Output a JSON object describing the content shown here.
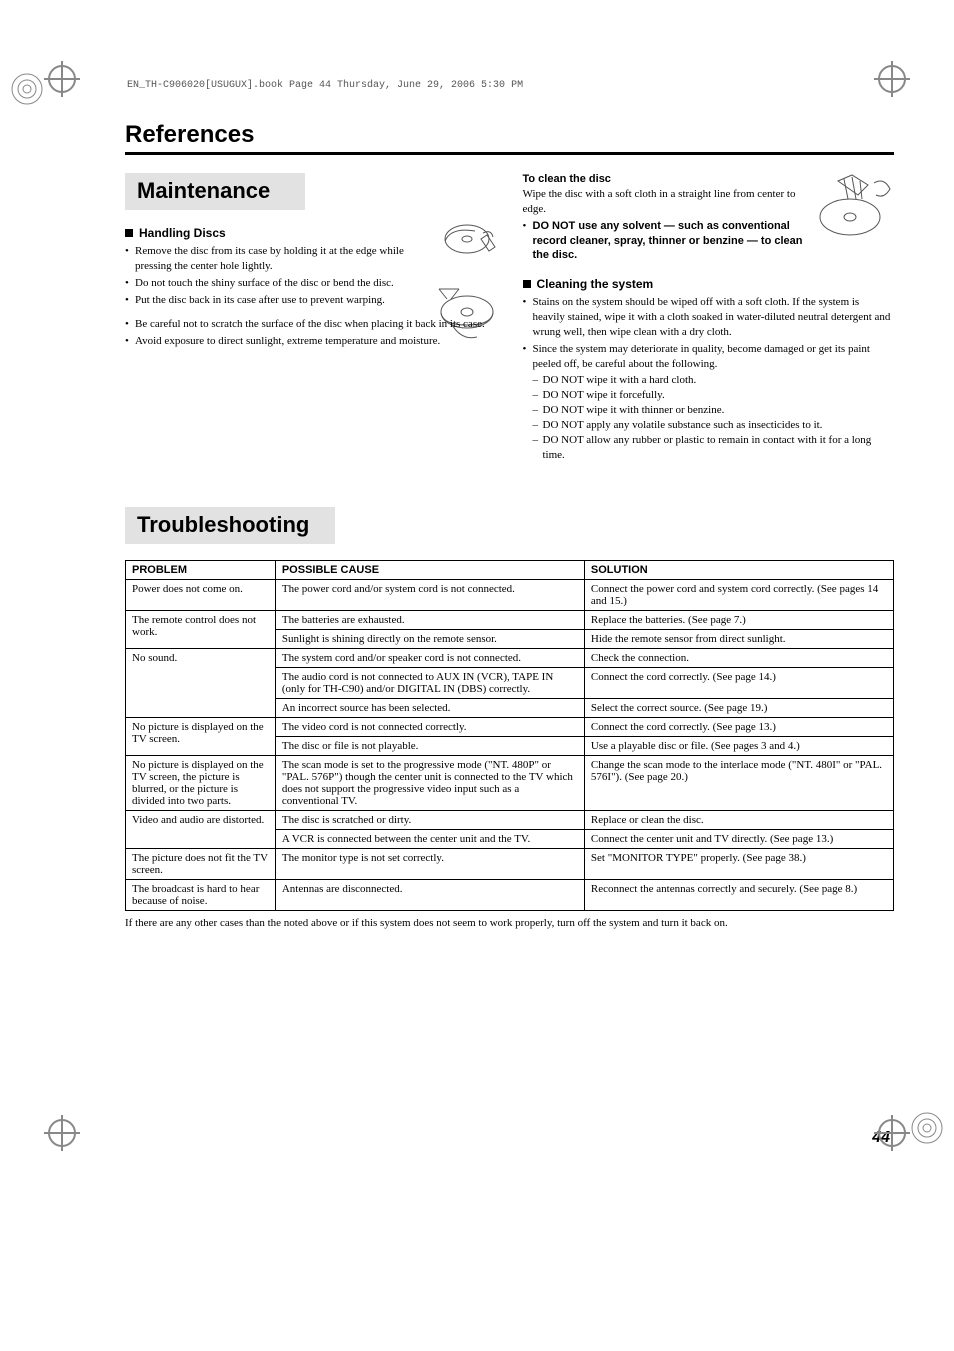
{
  "meta": {
    "header_line": "EN_TH-C906020[USUGUX].book  Page 44  Thursday, June 29, 2006  5:30 PM",
    "page_number": "44"
  },
  "chapter": {
    "title": "References"
  },
  "maintenance": {
    "title": "Maintenance",
    "handling_heading": "Handling Discs",
    "handling_items": [
      "Remove the disc from its case by holding it at the edge while pressing the center hole lightly.",
      "Do not touch the shiny surface of the disc or bend the disc.",
      "Put the disc back in its case after use to prevent warping.",
      "Be careful not to scratch the surface of the disc when placing it back in its case.",
      "Avoid exposure to direct sunlight, extreme temperature and moisture."
    ],
    "to_clean_heading": "To clean the disc",
    "to_clean_body": "Wipe the disc with a soft cloth in a straight line from center to edge.",
    "do_not_solvent": "DO NOT use any solvent — such as conventional record cleaner, spray, thinner or benzine — to clean the disc.",
    "cleaning_system_heading": "Cleaning the system",
    "cleaning_system_items": [
      "Stains on the system should be wiped off with a soft cloth. If the system is heavily stained, wipe it with a cloth soaked in water-diluted neutral detergent and wrung well, then wipe clean with a dry cloth.",
      "Since the system may deteriorate in quality, become damaged or get its paint peeled off, be careful about the following."
    ],
    "cleaning_system_sub": [
      "DO NOT wipe it with a hard cloth.",
      "DO NOT wipe it forcefully.",
      "DO NOT wipe it with thinner or benzine.",
      "DO NOT apply any volatile substance such as insecticides to it.",
      "DO NOT allow any rubber or plastic to remain in contact with it for a long time."
    ]
  },
  "troubleshooting": {
    "title": "Troubleshooting",
    "columns": [
      "PROBLEM",
      "POSSIBLE CAUSE",
      "SOLUTION"
    ],
    "rows": [
      {
        "problem": "Power does not come on.",
        "problem_rowspan": 1,
        "cause": "The power cord and/or system cord is not connected.",
        "solution": "Connect the power cord and system cord correctly. (See pages 14 and 15.)"
      },
      {
        "problem": "The remote control does not work.",
        "problem_rowspan": 2,
        "cause": "The batteries are exhausted.",
        "solution": "Replace the batteries. (See page 7.)"
      },
      {
        "cause": "Sunlight is shining directly on the remote sensor.",
        "solution": "Hide the remote sensor from direct sunlight."
      },
      {
        "problem": "No sound.",
        "problem_rowspan": 3,
        "cause": "The system cord and/or speaker cord is not connected.",
        "solution": "Check the connection."
      },
      {
        "cause": "The audio cord is not connected to AUX IN (VCR), TAPE IN (only for TH-C90) and/or DIGITAL IN (DBS) correctly.",
        "solution": "Connect the cord correctly. (See page 14.)"
      },
      {
        "cause": "An incorrect source has been selected.",
        "solution": "Select the correct source. (See page 19.)"
      },
      {
        "problem": "No picture is displayed on the TV screen.",
        "problem_rowspan": 2,
        "cause": "The video cord is not connected correctly.",
        "solution": "Connect the cord correctly. (See page 13.)"
      },
      {
        "cause": "The disc or file is not playable.",
        "solution": "Use a playable disc or file. (See pages 3 and 4.)"
      },
      {
        "problem": "No picture is displayed on the TV screen, the picture is blurred, or the picture is divided into two parts.",
        "problem_rowspan": 1,
        "cause": "The scan mode is set to the progressive mode (\"NT. 480P\" or \"PAL. 576P\") though the center unit is connected to the TV which does not support the progressive video input such as a conventional TV.",
        "solution": "Change the scan mode to the interlace mode (\"NT. 480I\" or \"PAL. 576I\"). (See page 20.)"
      },
      {
        "problem": "Video and audio are distorted.",
        "problem_rowspan": 2,
        "cause": "The disc is scratched or dirty.",
        "solution": "Replace or clean the disc."
      },
      {
        "cause": "A VCR is connected between the center unit and the TV.",
        "solution": "Connect the center unit and TV directly. (See page 13.)"
      },
      {
        "problem": "The picture does not fit the TV screen.",
        "problem_rowspan": 1,
        "cause": "The monitor type is not set correctly.",
        "solution": "Set \"MONITOR TYPE\" properly. (See page 38.)"
      },
      {
        "problem": "The broadcast is hard to hear because of noise.",
        "problem_rowspan": 1,
        "cause": "Antennas are disconnected.",
        "solution": "Reconnect the antennas correctly and securely. (See page 8.)"
      }
    ],
    "after": "If there are any other cases than the noted above or if this system does not seem to work properly, turn off the system and turn it back on.",
    "col_widths": {
      "problem": "16%",
      "cause": "33%",
      "solution": "33%"
    }
  },
  "style": {
    "bg": "#ffffff",
    "text": "#000000",
    "bar_bg": "#e2e2e2",
    "body_font_size_pt": 8,
    "heading_font_size_pt": 18,
    "bar_font_size_pt": 17
  }
}
